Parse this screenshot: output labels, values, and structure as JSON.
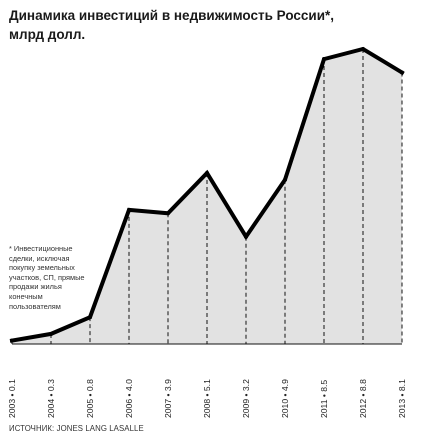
{
  "chart_data": {
    "type": "area",
    "title": "Динамика инвестиций в недвижимость России*, млрд долл.",
    "categories": [
      "2003",
      "2004",
      "2005",
      "2006",
      "2007",
      "2008",
      "2009",
      "2010",
      "2011",
      "2012",
      "2013"
    ],
    "values": [
      0.1,
      0.3,
      0.8,
      4.0,
      3.9,
      5.1,
      3.2,
      4.9,
      8.5,
      8.8,
      8.1
    ],
    "tick_labels": [
      "2003 • 0.1",
      "2004 • 0.3",
      "2005 • 0.8",
      "2006 • 4.0",
      "2007 • 3.9",
      "2008 • 5.1",
      "2009 • 3.2",
      "2010 • 4.9",
      "2011 • 8.5",
      "2012 • 8.8",
      "2013 • 8.1"
    ],
    "ylim": [
      0,
      8.8
    ],
    "grid": false,
    "legend": "none",
    "fill_color": "#e2e2e2",
    "line_color": "#000000",
    "footnote": "* Инвестиционные сделки, исключая покупку земельных участков, СП, прямые продажи жилья конечным пользователям",
    "source": "ИСТОЧНИК: JONES LANG LASALLE"
  }
}
